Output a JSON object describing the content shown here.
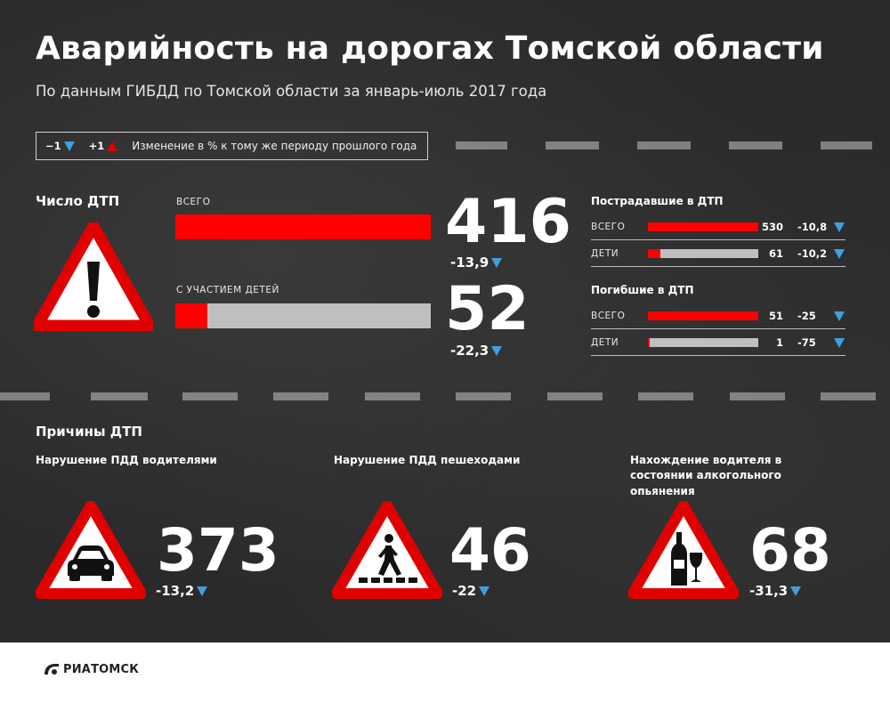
{
  "header": {
    "title": "Аварийность на дорогах Томской области",
    "subtitle": "По данным ГИБДД по Томской области за январь-июль 2017 года"
  },
  "legend": {
    "down_label": "−1",
    "up_label": "+1",
    "description": "Изменение в % к тому же периоду прошлого года",
    "down_color": "#3ea0dc",
    "up_color": "#e00000"
  },
  "accidents": {
    "section_title": "Число ДТП",
    "icon": "exclamation-warning-icon",
    "total": {
      "label": "ВСЕГО",
      "value": 416,
      "value_text": "416",
      "change": "-13,9"
    },
    "children": {
      "label": "С УЧАСТИЕМ ДЕТЕЙ",
      "value": 52,
      "value_text": "52",
      "change": "-22,3"
    }
  },
  "injured": {
    "title": "Пострадавшие в ДТП",
    "rows": [
      {
        "label": "ВСЕГО",
        "value": 530,
        "value_text": "530",
        "change": "-10,8"
      },
      {
        "label": "ДЕТИ",
        "value": 61,
        "value_text": "61",
        "change": "-10,2"
      }
    ]
  },
  "killed": {
    "title": "Погибшие в ДТП",
    "rows": [
      {
        "label": "ВСЕГО",
        "value": 51,
        "value_text": "51",
        "change": "-25"
      },
      {
        "label": "ДЕТИ",
        "value": 1,
        "value_text": "1",
        "change": "-75"
      }
    ]
  },
  "causes": {
    "section_title": "Причины ДТП",
    "items": [
      {
        "title": "Нарушение ПДД водителями",
        "icon": "car-warning-icon",
        "value_text": "373",
        "change": "-13,2"
      },
      {
        "title": "Нарушение ПДД пешеходами",
        "icon": "pedestrian-warning-icon",
        "value_text": "46",
        "change": "-22"
      },
      {
        "title": "Нахождение водителя в состоянии алкогольного опьянения",
        "icon": "alcohol-warning-icon",
        "value_text": "68",
        "change": "-31,3"
      }
    ]
  },
  "footer": {
    "logo_text": "РИАТОМСК",
    "logo_icon": "ria-logo-icon"
  },
  "colors": {
    "accent": "#ff0000",
    "track": "#bfbfbf",
    "down": "#3ea0dc",
    "background": "#2a2a2a"
  },
  "chart_data": [
    {
      "type": "bar",
      "title": "Число ДТП",
      "categories": [
        "ВСЕГО",
        "С УЧАСТИЕМ ДЕТЕЙ"
      ],
      "values": [
        416,
        52
      ],
      "changes": [
        "-13,9",
        "-22,3"
      ]
    },
    {
      "type": "bar",
      "title": "Пострадавшие в ДТП",
      "categories": [
        "ВСЕГО",
        "ДЕТИ"
      ],
      "values": [
        530,
        61
      ],
      "changes": [
        "-10,8",
        "-10,2"
      ]
    },
    {
      "type": "bar",
      "title": "Погибшие в ДТП",
      "categories": [
        "ВСЕГО",
        "ДЕТИ"
      ],
      "values": [
        51,
        1
      ],
      "changes": [
        "-25",
        "-75"
      ]
    },
    {
      "type": "table",
      "title": "Причины ДТП",
      "categories": [
        "Нарушение ПДД водителями",
        "Нарушение ПДД пешеходами",
        "Нахождение водителя в состоянии алкогольного опьянения"
      ],
      "values": [
        373,
        46,
        68
      ],
      "changes": [
        "-13,2",
        "-22",
        "-31,3"
      ]
    }
  ]
}
